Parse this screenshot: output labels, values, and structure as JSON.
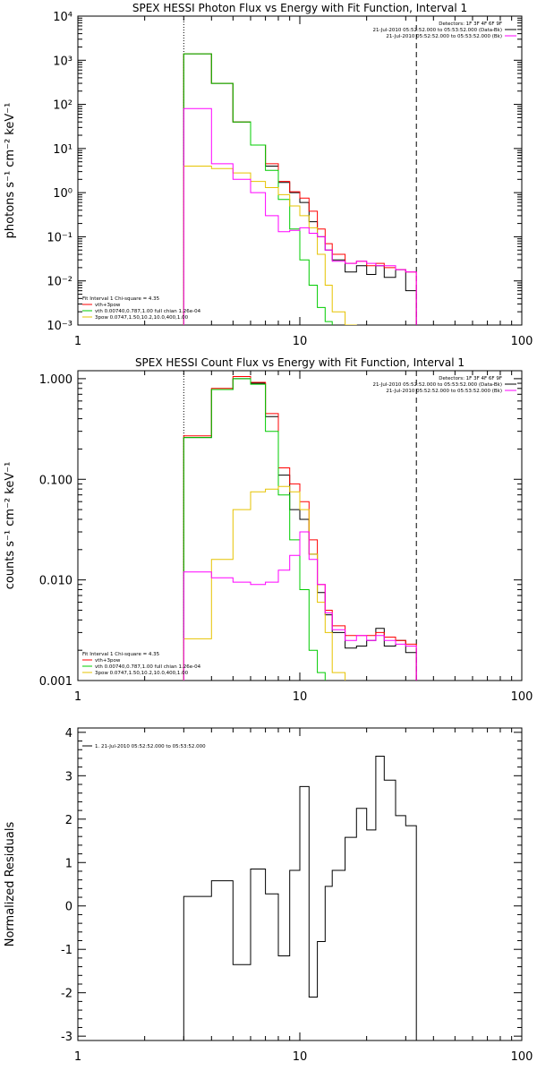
{
  "chart_data": [
    {
      "type": "line",
      "title": "SPEX HESSI Photon Flux vs Energy with Fit Function, Interval 1",
      "xlabel": "",
      "ylabel": "photons s⁻¹ cm⁻² keV⁻¹",
      "x_scale": "log",
      "y_scale": "log",
      "xlim": [
        1,
        100
      ],
      "ylim": [
        0.001,
        10000
      ],
      "x_ticks": [
        1,
        10,
        100
      ],
      "x_tick_labels": [
        "1",
        "10",
        "100"
      ],
      "y_ticks": [
        0.001,
        0.01,
        0.1,
        1,
        10,
        100,
        1000,
        10000
      ],
      "y_tick_labels": [
        "10⁻³",
        "10⁻²",
        "10⁻¹",
        "10⁰",
        "10¹",
        "10²",
        "10³",
        "10⁴"
      ],
      "vlines": [
        {
          "x": 3,
          "style": "dotted"
        },
        {
          "x": 33.5,
          "style": "dashed"
        }
      ],
      "legend_top_right": [
        "Detectors: 1F 3F 4F 6F 9F",
        "21-Jul-2010 05:52:52.000 to 05:53:52.000 (Data-Bk)",
        "21-Jul-2010 05:52:52.000 to 05:53:52.000 (Bk)"
      ],
      "legend_bottom_left": [
        "Fit Interval 1    Chi-square = 4.35",
        "vth+3pow",
        "vth 0.00740,0.787,1.00  full chian 1.26e-04",
        "3pow 0.0747,1.50,10.2,10.0,400,1.00"
      ],
      "bin_edges": [
        3,
        4,
        5,
        6,
        7,
        8,
        9,
        10,
        11,
        12,
        13,
        14,
        16,
        18,
        20,
        22,
        24,
        27,
        30,
        33.5
      ],
      "series": [
        {
          "name": "Data-Bk",
          "color": "#000000",
          "values": [
            1400,
            300,
            40,
            12,
            4,
            1.7,
            1,
            0.6,
            0.22,
            0.1,
            0.05,
            0.03,
            0.016,
            0.022,
            0.014,
            0.022,
            0.012,
            0.018,
            0.006
          ]
        },
        {
          "name": "vth+3pow",
          "color": "#ff0000",
          "values": [
            1400,
            300,
            40,
            12,
            4.5,
            1.8,
            1.05,
            0.75,
            0.38,
            0.15,
            0.07,
            0.04,
            0.025,
            0.028,
            0.022,
            0.025,
            0.02,
            0.018,
            0.016
          ]
        },
        {
          "name": "vth",
          "color": "#00cc00",
          "values": [
            1400,
            300,
            40,
            12,
            3.2,
            0.7,
            0.15,
            0.03,
            0.008,
            0.0025,
            0.0012
          ]
        },
        {
          "name": "3pow",
          "color": "#e6c300",
          "values": [
            4,
            3.5,
            2.8,
            1.8,
            1.3,
            0.9,
            0.5,
            0.3,
            0.16,
            0.04,
            0.008,
            0.002,
            0.001
          ]
        },
        {
          "name": "Bk",
          "color": "#ff00ff",
          "values": [
            80,
            4.5,
            2,
            1,
            0.3,
            0.13,
            0.14,
            0.16,
            0.12,
            0.1,
            0.05,
            0.028,
            0.025,
            0.028,
            0.025,
            0.022,
            0.022,
            0.018,
            0.016
          ]
        }
      ]
    },
    {
      "type": "line",
      "title": "SPEX HESSI Count Flux vs Energy with Fit Function, Interval 1",
      "xlabel": "",
      "ylabel": "counts s⁻¹ cm⁻² keV⁻¹",
      "x_scale": "log",
      "y_scale": "log",
      "xlim": [
        1,
        100
      ],
      "ylim": [
        0.001,
        1.2
      ],
      "x_ticks": [
        1,
        10,
        100
      ],
      "x_tick_labels": [
        "1",
        "10",
        "100"
      ],
      "y_ticks": [
        0.001,
        0.01,
        0.1,
        1
      ],
      "y_tick_labels": [
        "0.001",
        "0.010",
        "0.100",
        "1.000"
      ],
      "vlines": [
        {
          "x": 3,
          "style": "dotted"
        },
        {
          "x": 33.5,
          "style": "dashed"
        }
      ],
      "legend_top_right": [
        "Detectors: 1F 3F 4F 6F 9F",
        "21-Jul-2010 05:52:52.000 to 05:53:52.000 (Data-Bk)",
        "21-Jul-2010 05:52:52.000 to 05:53:52.000 (Bk)"
      ],
      "legend_bottom_left": [
        "Fit Interval 1    Chi-square = 4.35",
        "vth+3pow",
        "vth 0.00740,0.787,1.00  full chian 1.26e-04",
        "3pow 0.0747,1.50,10.2,10.0,400,1.00"
      ],
      "bin_edges": [
        3,
        4,
        5,
        6,
        7,
        8,
        9,
        10,
        11,
        12,
        13,
        14,
        16,
        18,
        20,
        22,
        24,
        27,
        30,
        33.5
      ],
      "series": [
        {
          "name": "Data-Bk",
          "color": "#000000",
          "values": [
            0.26,
            0.78,
            1.0,
            0.9,
            0.42,
            0.11,
            0.05,
            0.04,
            0.018,
            0.0075,
            0.0045,
            0.003,
            0.0021,
            0.0022,
            0.0025,
            0.0033,
            0.0022,
            0.0025,
            0.0019
          ]
        },
        {
          "name": "vth+3pow",
          "color": "#ff0000",
          "values": [
            0.27,
            0.8,
            1.05,
            0.92,
            0.45,
            0.13,
            0.09,
            0.06,
            0.025,
            0.009,
            0.005,
            0.0035,
            0.0028,
            0.0028,
            0.0028,
            0.003,
            0.0027,
            0.0025,
            0.0023
          ]
        },
        {
          "name": "vth",
          "color": "#00cc00",
          "values": [
            0.26,
            0.78,
            1.0,
            0.88,
            0.3,
            0.07,
            0.025,
            0.008,
            0.002,
            0.0012
          ]
        },
        {
          "name": "3pow",
          "color": "#e6c300",
          "values": [
            0.0026,
            0.016,
            0.05,
            0.075,
            0.08,
            0.085,
            0.075,
            0.05,
            0.018,
            0.006,
            0.003,
            0.0012
          ]
        },
        {
          "name": "Bk",
          "color": "#ff00ff",
          "values": [
            0.012,
            0.0105,
            0.0095,
            0.009,
            0.0095,
            0.0125,
            0.0175,
            0.03,
            0.016,
            0.009,
            0.0047,
            0.0032,
            0.0025,
            0.0028,
            0.0025,
            0.0028,
            0.0025,
            0.0023,
            0.0022
          ]
        }
      ]
    },
    {
      "type": "line",
      "title": "",
      "xlabel": "",
      "ylabel": "Normalized Residuals",
      "x_scale": "log",
      "y_scale": "linear",
      "xlim": [
        1,
        100
      ],
      "ylim": [
        -3.1,
        4.1
      ],
      "x_ticks": [
        1,
        10,
        100
      ],
      "x_tick_labels": [
        "1",
        "10",
        "100"
      ],
      "y_ticks": [
        -3,
        -2,
        -1,
        0,
        1,
        2,
        3,
        4
      ],
      "y_tick_labels": [
        "-3",
        "-2",
        "-1",
        "0",
        "1",
        "2",
        "3",
        "4"
      ],
      "legend_top_left": [
        "1. 21-Jul-2010 05:52:52.000 to 05:53:52.000"
      ],
      "bin_edges": [
        3,
        4,
        5,
        6,
        7,
        8,
        9,
        10,
        11,
        12,
        13,
        14,
        16,
        18,
        20,
        22,
        24,
        27,
        30,
        33.5
      ],
      "series": [
        {
          "name": "",
          "color": "#000000",
          "values": [
            0.22,
            0.58,
            -1.35,
            0.85,
            0.28,
            -1.15,
            0.82,
            2.75,
            -2.1,
            -0.82,
            0.45,
            0.82,
            1.58,
            2.25,
            1.75,
            3.45,
            2.9,
            2.08,
            1.85
          ]
        }
      ]
    }
  ]
}
